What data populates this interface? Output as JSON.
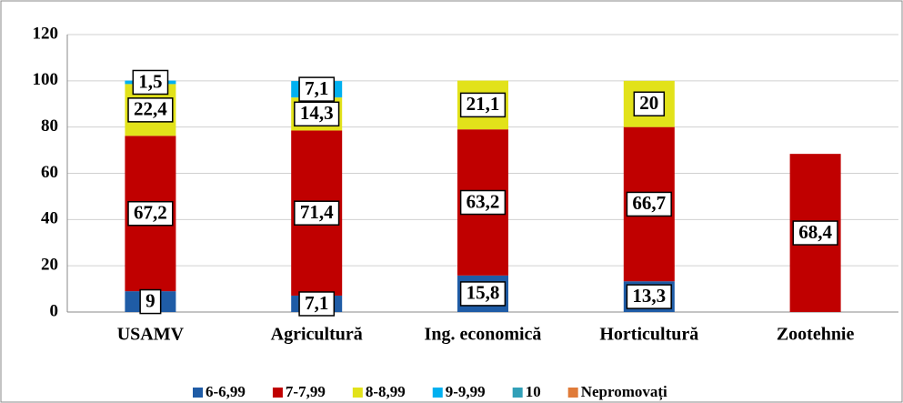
{
  "chart_data": {
    "type": "stacked_bar",
    "categories": [
      "USAMV",
      "Agricultură",
      "Ing. economică",
      "Horticultură",
      "Zootehnie"
    ],
    "series": [
      {
        "name": "6-6,99",
        "color": "#1f5ca6",
        "values": [
          9,
          7.1,
          15.8,
          13.3,
          null
        ],
        "value_labels": [
          "9",
          "7,1",
          "15,8",
          "13,3",
          null
        ]
      },
      {
        "name": "7-7,99",
        "color": "#c00000",
        "values": [
          67.2,
          71.4,
          63.2,
          66.7,
          68.4
        ],
        "value_labels": [
          "67,2",
          "71,4",
          "63,2",
          "66,7",
          "68,4"
        ]
      },
      {
        "name": "8-8,99",
        "color": "#e2e21a",
        "values": [
          22.4,
          14.3,
          21.1,
          20,
          null
        ],
        "value_labels": [
          "22,4",
          "14,3",
          "21,1",
          "20",
          null
        ]
      },
      {
        "name": "9-9,99",
        "color": "#00b0f0",
        "values": [
          1.5,
          7.1,
          null,
          null,
          null
        ],
        "value_labels": [
          "1,5",
          "7,1",
          null,
          null,
          null
        ]
      },
      {
        "name": "10",
        "color": "#31a0b8",
        "values": [
          null,
          null,
          null,
          null,
          null
        ]
      },
      {
        "name": "Nepromovați",
        "color": "#e07b39",
        "values": [
          null,
          null,
          null,
          null,
          null
        ]
      }
    ],
    "ylim": [
      0,
      120
    ],
    "yticks": [
      0,
      20,
      40,
      60,
      80,
      100,
      120
    ],
    "grid": true,
    "legend": "bottom"
  }
}
